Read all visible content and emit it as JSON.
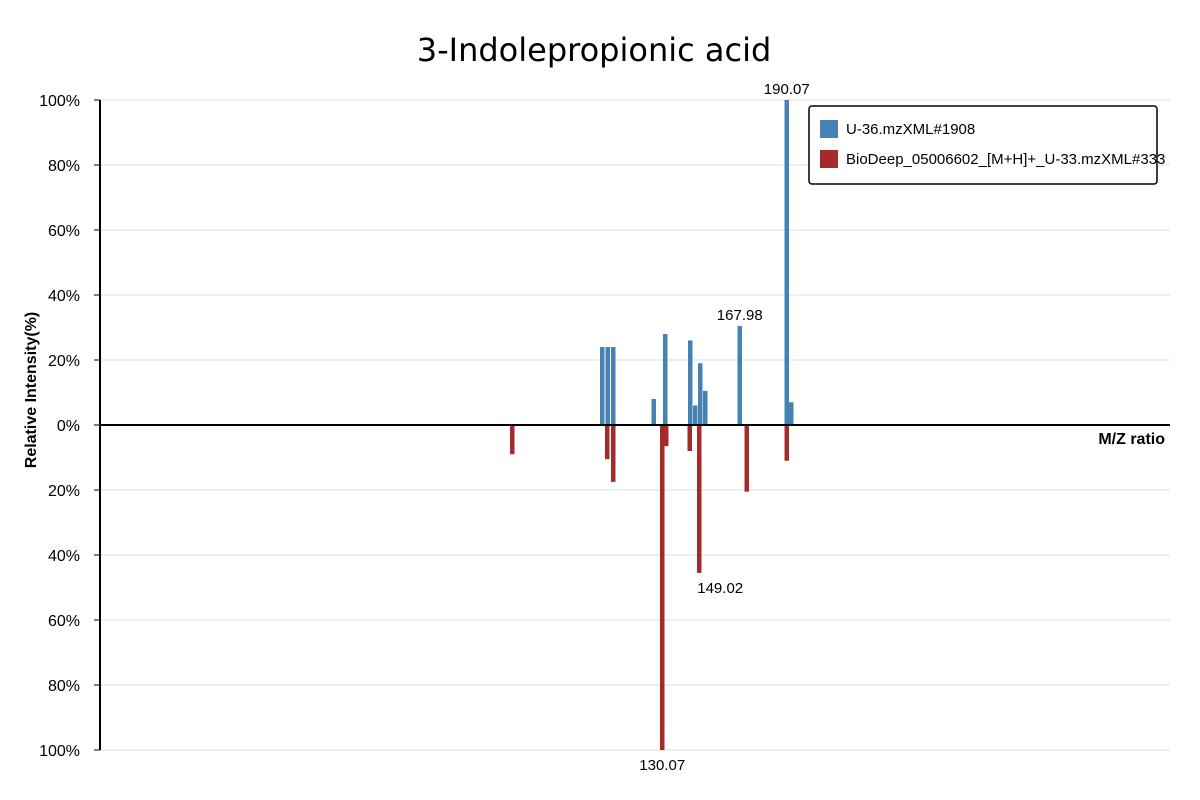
{
  "chart_data": {
    "type": "bar",
    "title": "3-Indolepropionic acid",
    "xlabel": "M/Z ratio",
    "ylabel": "Relative Intensity(%)",
    "yticks_top": [
      "100%",
      "80%",
      "60%",
      "40%",
      "20%",
      "0%"
    ],
    "yticks_bottom": [
      "20%",
      "40%",
      "60%",
      "80%",
      "100%"
    ],
    "ylim": [
      -100,
      100
    ],
    "xlim": [
      0,
      218
    ],
    "grid": true,
    "legend_position": "top-right",
    "colors": {
      "upper": "#4682b4",
      "lower": "#a52a2a"
    },
    "series": [
      {
        "name": "U-36.mzXML#1908",
        "direction": "up",
        "peaks": [
          {
            "mz": 100.45,
            "intensity": 24
          },
          {
            "mz": 101.55,
            "intensity": 24
          },
          {
            "mz": 102.65,
            "intensity": 24
          },
          {
            "mz": 110.75,
            "intensity": 8
          },
          {
            "mz": 113.05,
            "intensity": 28
          },
          {
            "mz": 118.05,
            "intensity": 26
          },
          {
            "mz": 119.05,
            "intensity": 6
          },
          {
            "mz": 120.05,
            "intensity": 19
          },
          {
            "mz": 121.05,
            "intensity": 10.5
          },
          {
            "mz": 127.95,
            "intensity": 30.5
          },
          {
            "mz": 137.35,
            "intensity": 100
          },
          {
            "mz": 138.25,
            "intensity": 7
          }
        ],
        "labels": [
          {
            "text": "190.07",
            "mz": 137.35,
            "intensity": 100
          },
          {
            "text": "167.98",
            "mz": 127.95,
            "intensity": 30.5
          }
        ]
      },
      {
        "name": "BioDeep_05006602_[M+H]+_U-33.mzXML#333",
        "direction": "down",
        "peaks": [
          {
            "mz": 82.45,
            "intensity": 9
          },
          {
            "mz": 101.45,
            "intensity": 10.5
          },
          {
            "mz": 102.65,
            "intensity": 17.5
          },
          {
            "mz": 112.45,
            "intensity": 100
          },
          {
            "mz": 113.25,
            "intensity": 6.5
          },
          {
            "mz": 117.95,
            "intensity": 8
          },
          {
            "mz": 119.85,
            "intensity": 45.5
          },
          {
            "mz": 129.35,
            "intensity": 20.5
          },
          {
            "mz": 137.35,
            "intensity": 11
          }
        ],
        "labels": [
          {
            "text": "149.02",
            "mz": 119.85,
            "intensity": 45.5
          },
          {
            "text": "130.07",
            "mz": 112.45,
            "intensity": 100
          }
        ]
      }
    ]
  }
}
